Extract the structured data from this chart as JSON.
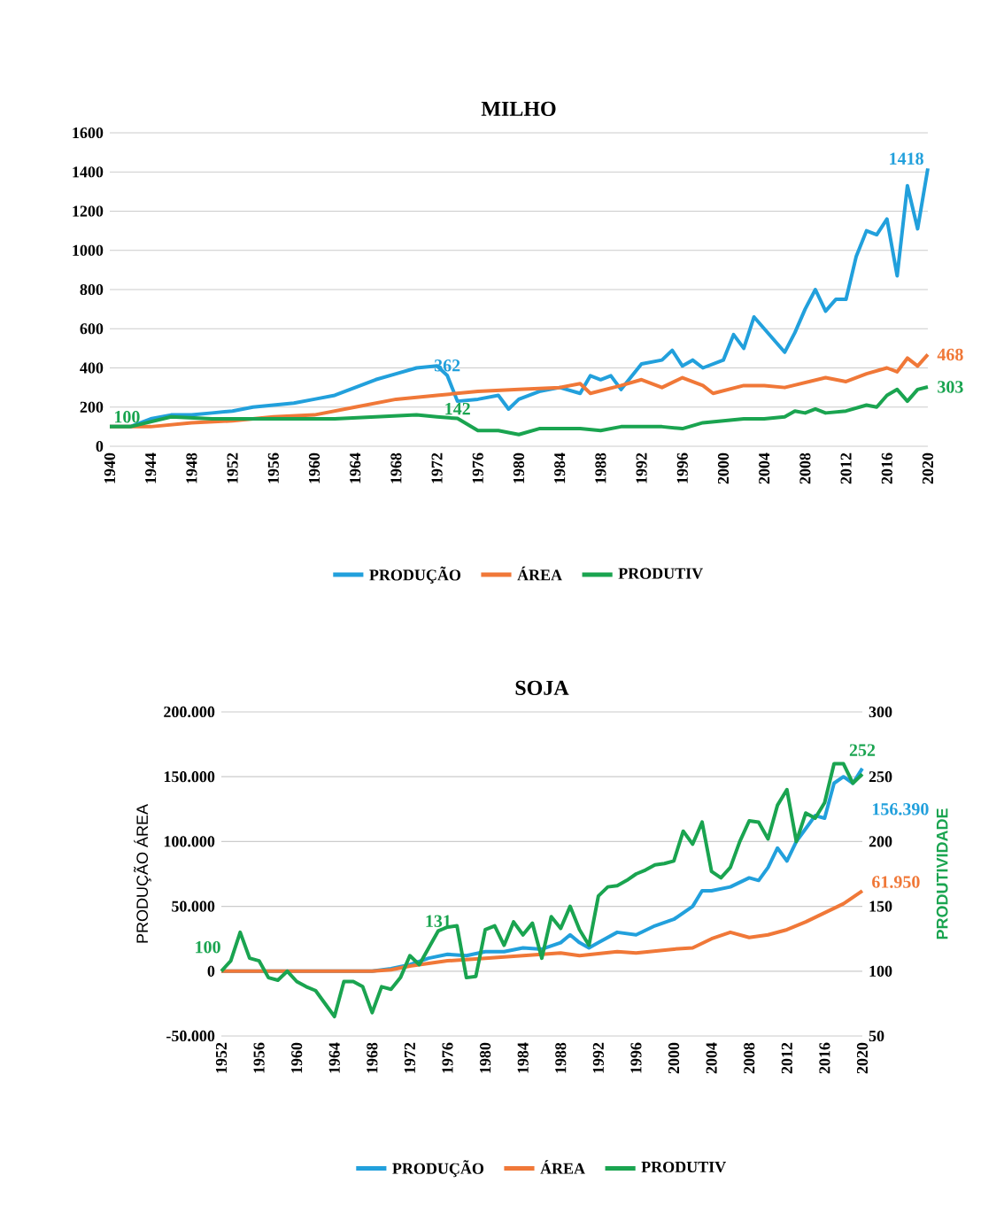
{
  "chart_data": [
    {
      "type": "line",
      "title": "MILHO",
      "xlim": [
        1940,
        2020
      ],
      "xticks": [
        1940,
        1944,
        1948,
        1952,
        1956,
        1960,
        1964,
        1968,
        1972,
        1976,
        1980,
        1984,
        1988,
        1992,
        1996,
        2000,
        2004,
        2008,
        2012,
        2016,
        2020
      ],
      "ylim": [
        0,
        1600
      ],
      "yticks": [
        0,
        200,
        400,
        600,
        800,
        1000,
        1200,
        1400,
        1600
      ],
      "grid": "y",
      "legend": "bottom",
      "marker": "none",
      "line_style": "solid",
      "series": [
        {
          "name": "PRODUÇÃO",
          "color": "#22a0dc",
          "x": [
            1940,
            1942,
            1944,
            1946,
            1948,
            1950,
            1952,
            1954,
            1956,
            1958,
            1960,
            1962,
            1964,
            1966,
            1968,
            1970,
            1972,
            1973,
            1974,
            1976,
            1978,
            1979,
            1980,
            1982,
            1984,
            1986,
            1987,
            1988,
            1989,
            1990,
            1992,
            1994,
            1995,
            1996,
            1997,
            1998,
            2000,
            2001,
            2002,
            2003,
            2004,
            2006,
            2007,
            2008,
            2009,
            2010,
            2011,
            2012,
            2013,
            2014,
            2015,
            2016,
            2017,
            2018,
            2019,
            2020
          ],
          "values": [
            100,
            100,
            140,
            160,
            160,
            170,
            180,
            200,
            210,
            220,
            240,
            260,
            300,
            340,
            370,
            400,
            410,
            362,
            230,
            240,
            260,
            190,
            240,
            280,
            300,
            270,
            360,
            340,
            360,
            290,
            420,
            440,
            490,
            410,
            440,
            400,
            440,
            570,
            500,
            660,
            600,
            480,
            580,
            700,
            800,
            690,
            750,
            750,
            970,
            1100,
            1080,
            1160,
            870,
            1330,
            1110,
            1418
          ],
          "value_labels": [
            null,
            null,
            null,
            null,
            null,
            null,
            null,
            null,
            null,
            null,
            null,
            null,
            null,
            null,
            null,
            null,
            null,
            "362",
            null,
            null,
            null,
            null,
            null,
            null,
            null,
            null,
            null,
            null,
            null,
            null,
            null,
            null,
            null,
            null,
            null,
            null,
            null,
            null,
            null,
            null,
            null,
            null,
            null,
            null,
            null,
            null,
            null,
            null,
            null,
            null,
            null,
            null,
            null,
            null,
            null,
            "1418"
          ]
        },
        {
          "name": "ÁREA",
          "color": "#f07838",
          "x": [
            1940,
            1944,
            1948,
            1952,
            1956,
            1960,
            1964,
            1968,
            1972,
            1976,
            1980,
            1984,
            1986,
            1987,
            1990,
            1992,
            1994,
            1996,
            1998,
            1999,
            2002,
            2004,
            2006,
            2010,
            2012,
            2014,
            2016,
            2017,
            2018,
            2019,
            2020
          ],
          "values": [
            100,
            100,
            120,
            130,
            150,
            160,
            200,
            240,
            260,
            280,
            290,
            300,
            320,
            270,
            310,
            340,
            300,
            350,
            310,
            270,
            310,
            310,
            300,
            350,
            330,
            370,
            400,
            380,
            450,
            410,
            468
          ],
          "value_labels": [
            null,
            null,
            null,
            null,
            null,
            null,
            null,
            null,
            null,
            null,
            null,
            null,
            null,
            null,
            null,
            null,
            null,
            null,
            null,
            null,
            null,
            null,
            null,
            null,
            null,
            null,
            null,
            null,
            null,
            null,
            "468"
          ]
        },
        {
          "name": "PRODUTIV",
          "color": "#1aa450",
          "x": [
            1940,
            1942,
            1946,
            1950,
            1954,
            1958,
            1962,
            1966,
            1970,
            1972,
            1974,
            1976,
            1978,
            1980,
            1982,
            1986,
            1988,
            1990,
            1994,
            1996,
            1998,
            2000,
            2002,
            2004,
            2006,
            2007,
            2008,
            2009,
            2010,
            2012,
            2014,
            2015,
            2016,
            2017,
            2018,
            2019,
            2020
          ],
          "values": [
            100,
            100,
            150,
            140,
            140,
            140,
            140,
            150,
            160,
            150,
            142,
            80,
            80,
            60,
            90,
            90,
            80,
            100,
            100,
            90,
            120,
            130,
            140,
            140,
            150,
            180,
            170,
            190,
            170,
            180,
            210,
            200,
            260,
            290,
            230,
            290,
            303
          ],
          "value_labels": [
            "100",
            null,
            null,
            null,
            null,
            null,
            null,
            null,
            null,
            null,
            "142",
            null,
            null,
            null,
            null,
            null,
            null,
            null,
            null,
            null,
            null,
            null,
            null,
            null,
            null,
            null,
            null,
            null,
            null,
            null,
            null,
            null,
            null,
            null,
            null,
            null,
            "303"
          ]
        }
      ]
    },
    {
      "type": "line",
      "title": "SOJA",
      "ylabel": "PRODUÇÃO ÁREA",
      "y2label": "PRODUTIVIDADE",
      "xlim": [
        1952,
        2020
      ],
      "xticks": [
        1952,
        1956,
        1960,
        1964,
        1968,
        1972,
        1976,
        1980,
        1984,
        1988,
        1992,
        1996,
        2000,
        2004,
        2008,
        2012,
        2016,
        2020
      ],
      "ylim": [
        -50000,
        200000
      ],
      "yticks": [
        {
          "value": -50000,
          "label": "-50.000"
        },
        0,
        {
          "value": 50000,
          "label": "50.000"
        },
        {
          "value": 100000,
          "label": "100.000"
        },
        {
          "value": 150000,
          "label": "150.000"
        },
        {
          "value": 200000,
          "label": "200.000"
        }
      ],
      "y2lim": [
        50,
        300
      ],
      "y2ticks": [
        50,
        100,
        150,
        200,
        250,
        300
      ],
      "grid": "y",
      "legend": "bottom",
      "marker": "none",
      "line_style": "solid",
      "series": [
        {
          "name": "PRODUÇÃO",
          "color": "#22a0dc",
          "x": [
            1952,
            1960,
            1968,
            1970,
            1972,
            1974,
            1976,
            1978,
            1980,
            1982,
            1984,
            1986,
            1988,
            1989,
            1990,
            1991,
            1992,
            1994,
            1996,
            1998,
            2000,
            2002,
            2003,
            2004,
            2006,
            2008,
            2009,
            2010,
            2011,
            2012,
            2013,
            2014,
            2015,
            2016,
            2017,
            2018,
            2019,
            2020
          ],
          "values": [
            0,
            0,
            0,
            2000,
            5000,
            10000,
            13000,
            12000,
            15000,
            15000,
            18000,
            17000,
            22000,
            28000,
            22000,
            18000,
            22000,
            30000,
            28000,
            35000,
            40000,
            50000,
            62000,
            62000,
            65000,
            72000,
            70000,
            80000,
            95000,
            85000,
            100000,
            110000,
            120000,
            118000,
            145000,
            150000,
            145000,
            156390
          ],
          "value_labels": [
            null,
            null,
            null,
            null,
            null,
            null,
            null,
            null,
            null,
            null,
            null,
            null,
            null,
            null,
            null,
            null,
            null,
            null,
            null,
            null,
            null,
            null,
            null,
            null,
            null,
            null,
            null,
            null,
            null,
            null,
            null,
            null,
            null,
            null,
            null,
            null,
            null,
            "156.390"
          ]
        },
        {
          "name": "ÁREA",
          "color": "#f07838",
          "x": [
            1952,
            1960,
            1968,
            1970,
            1972,
            1976,
            1980,
            1984,
            1988,
            1990,
            1994,
            1996,
            2000,
            2002,
            2004,
            2006,
            2008,
            2010,
            2012,
            2014,
            2016,
            2018,
            2020
          ],
          "values": [
            0,
            0,
            0,
            1000,
            4000,
            8000,
            10000,
            12000,
            14000,
            12000,
            15000,
            14000,
            17000,
            18000,
            25000,
            30000,
            26000,
            28000,
            32000,
            38000,
            45000,
            52000,
            61950
          ],
          "value_labels": [
            null,
            null,
            null,
            null,
            null,
            null,
            null,
            null,
            null,
            null,
            null,
            null,
            null,
            null,
            null,
            null,
            null,
            null,
            null,
            null,
            null,
            null,
            "61.950"
          ]
        },
        {
          "name": "PRODUTIV",
          "color": "#1aa450",
          "axis": "y2",
          "x": [
            1952,
            1953,
            1954,
            1955,
            1956,
            1957,
            1958,
            1959,
            1960,
            1961,
            1962,
            1963,
            1964,
            1965,
            1966,
            1967,
            1968,
            1969,
            1970,
            1971,
            1972,
            1973,
            1974,
            1975,
            1976,
            1977,
            1978,
            1979,
            1980,
            1981,
            1982,
            1983,
            1984,
            1985,
            1986,
            1987,
            1988,
            1989,
            1990,
            1991,
            1992,
            1993,
            1994,
            1995,
            1996,
            1997,
            1998,
            1999,
            2000,
            2001,
            2002,
            2003,
            2004,
            2005,
            2006,
            2007,
            2008,
            2009,
            2010,
            2011,
            2012,
            2013,
            2014,
            2015,
            2016,
            2017,
            2018,
            2019,
            2020
          ],
          "values": [
            100,
            108,
            130,
            110,
            108,
            95,
            93,
            100,
            92,
            88,
            85,
            75,
            65,
            92,
            92,
            88,
            68,
            88,
            86,
            95,
            112,
            105,
            118,
            131,
            134,
            135,
            95,
            96,
            132,
            135,
            120,
            138,
            128,
            137,
            110,
            142,
            133,
            150,
            132,
            120,
            158,
            165,
            166,
            170,
            175,
            178,
            182,
            183,
            185,
            208,
            198,
            215,
            177,
            172,
            180,
            200,
            216,
            215,
            202,
            228,
            240,
            200,
            222,
            218,
            230,
            260,
            260,
            245,
            252
          ],
          "value_labels": [
            "100",
            null,
            null,
            null,
            null,
            null,
            null,
            null,
            null,
            null,
            null,
            null,
            null,
            null,
            null,
            null,
            null,
            null,
            null,
            null,
            null,
            null,
            null,
            "131",
            null,
            null,
            null,
            null,
            null,
            null,
            null,
            null,
            null,
            null,
            null,
            null,
            null,
            null,
            null,
            null,
            null,
            null,
            null,
            null,
            null,
            null,
            null,
            null,
            null,
            null,
            null,
            null,
            null,
            null,
            null,
            null,
            null,
            null,
            null,
            null,
            null,
            null,
            null,
            null,
            null,
            null,
            null,
            null,
            "252"
          ]
        }
      ]
    }
  ]
}
